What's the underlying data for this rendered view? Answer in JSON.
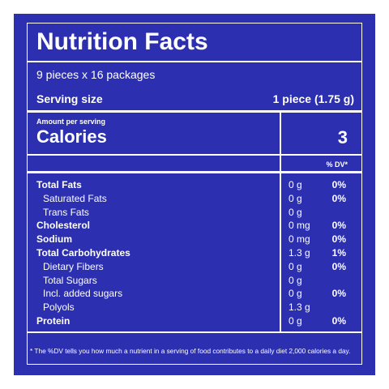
{
  "header": {
    "title": "Nutrition Facts",
    "servings": "9 pieces x 16 packages",
    "serving_size_label": "Serving size",
    "serving_size": "1 piece (1.75 g)"
  },
  "calories": {
    "amount_label": "Amount per serving",
    "label": "Calories",
    "value": 3
  },
  "table": {
    "dv_header": "% DV*",
    "rows": [
      [
        "Total Fats",
        "0 g",
        "0%"
      ],
      [
        "Saturated Fats",
        "0 g",
        "0%"
      ],
      [
        "Trans Fats",
        "0 g",
        null
      ],
      [
        "Cholesterol",
        "0 mg",
        "0%"
      ],
      [
        "Sodium",
        "0 mg",
        "0%"
      ],
      [
        "Total Carbohydrates",
        "1.3 g",
        "1%"
      ],
      [
        "Dietary Fibers",
        "0 g",
        "0%"
      ],
      [
        "Total Sugars",
        "0 g",
        null
      ],
      [
        "Incl. added sugars",
        "0 g",
        "0%"
      ],
      [
        "Polyols",
        "1.3 g",
        null
      ],
      [
        "Protein",
        "0 g",
        "0%"
      ]
    ]
  },
  "footnote": "* The %DV tells you how much a nutrient in a serving of food contributes to a daily diet 2,000 calories a day."
}
